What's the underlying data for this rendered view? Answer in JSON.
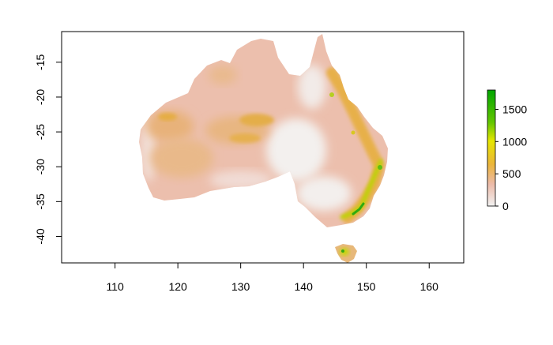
{
  "map": {
    "x_axis": {
      "ticks": [
        110,
        120,
        130,
        140,
        150,
        160
      ],
      "range": [
        101.5,
        165.5
      ]
    },
    "y_axis": {
      "ticks": [
        -15,
        -20,
        -25,
        -30,
        -35,
        -40
      ],
      "range": [
        -43.8,
        -10.6
      ]
    }
  },
  "legend": {
    "ticks": [
      0,
      500,
      1000,
      1500
    ],
    "range": [
      0,
      1800
    ],
    "color_stops": [
      {
        "value": 0,
        "color": "#f2f2f2"
      },
      {
        "value": 350,
        "color": "#ecbaa8"
      },
      {
        "value": 650,
        "color": "#ebb53a"
      },
      {
        "value": 1000,
        "color": "#e6e600"
      },
      {
        "value": 1300,
        "color": "#63c600"
      },
      {
        "value": 1800,
        "color": "#00a600"
      }
    ]
  }
}
